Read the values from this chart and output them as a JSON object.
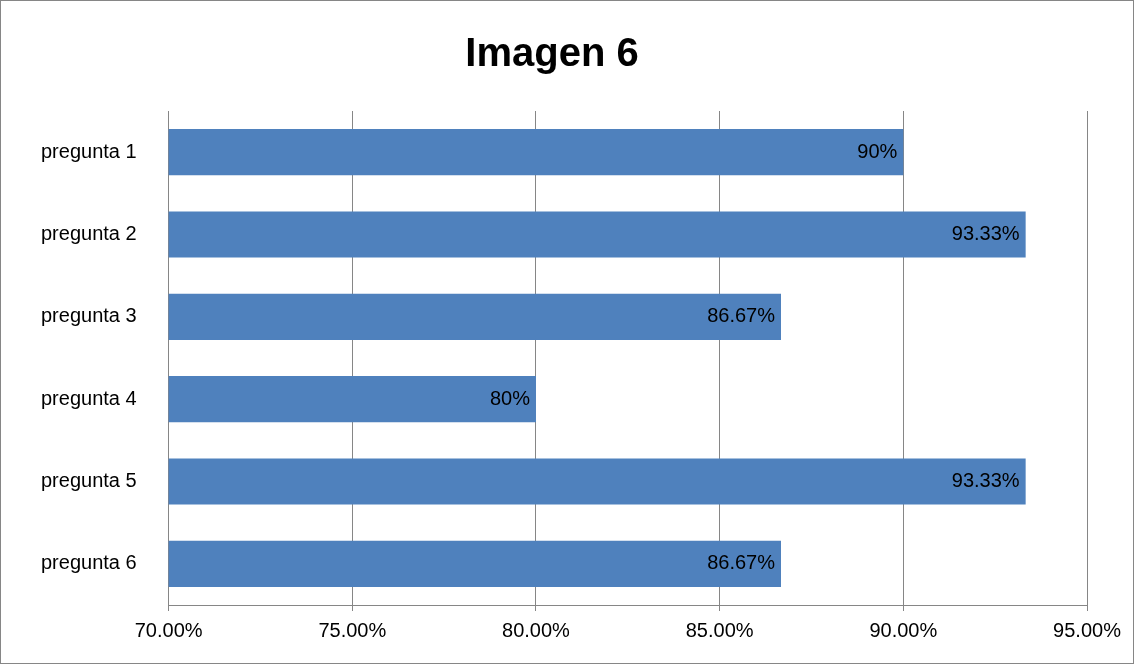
{
  "chart_data": {
    "type": "bar",
    "orientation": "horizontal",
    "title": "Imagen 6",
    "categories": [
      "pregunta 1",
      "pregunta 2",
      "pregunta 3",
      "pregunta 4",
      "pregunta 5",
      "pregunta 6"
    ],
    "values": [
      90,
      93.33,
      86.67,
      80,
      93.33,
      86.67
    ],
    "value_labels": [
      "90%",
      "93.33%",
      "86.67%",
      "80%",
      "93.33%",
      "86.67%"
    ],
    "color": "#4f81bd",
    "xlim": [
      70,
      95
    ],
    "xticks": [
      {
        "value": 70,
        "label": "70.00%"
      },
      {
        "value": 75,
        "label": "75.00%"
      },
      {
        "value": 80,
        "label": "80.00%"
      },
      {
        "value": 85,
        "label": "85.00%"
      },
      {
        "value": 90,
        "label": "90.00%"
      },
      {
        "value": 95,
        "label": "95.00%"
      }
    ],
    "grid": "x",
    "legend": false
  }
}
